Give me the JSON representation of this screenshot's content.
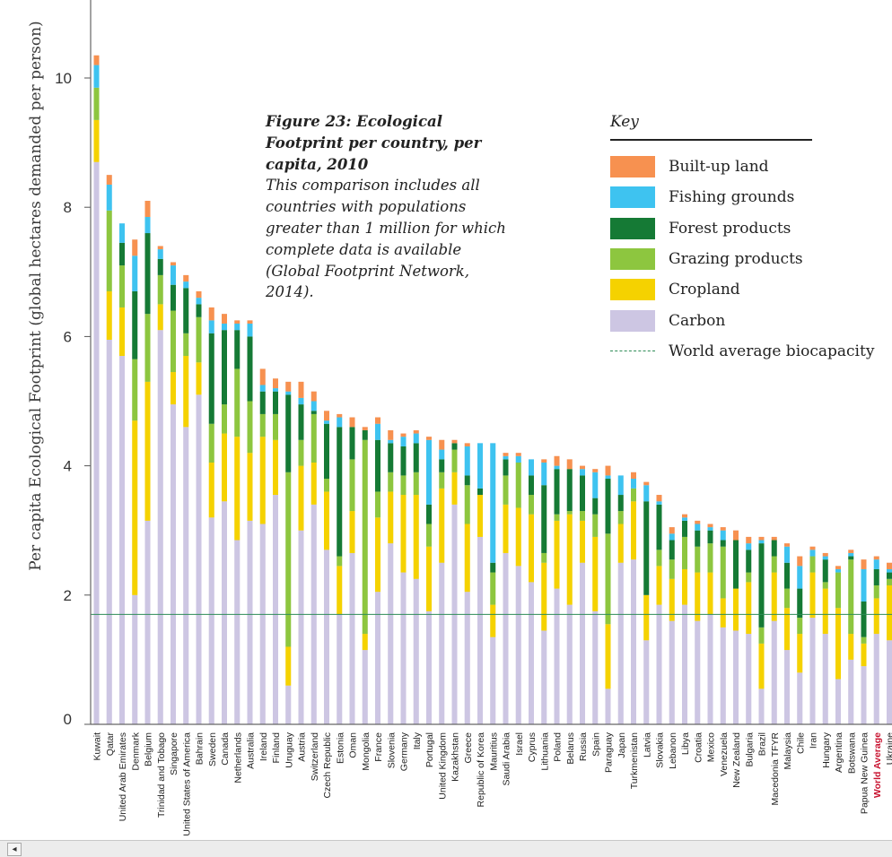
{
  "chart_data": {
    "type": "bar",
    "stacked": true,
    "title": "Figure 23: Ecological Footprint per country, per capita, 2010",
    "subtitle": "This comparison includes all countries with populations greater than 1 million for which complete data is available (Global Footprint Network, 2014).",
    "ylabel": "Per capita Ecological Footprint (global hectares demanded per person)",
    "ylim": [
      0,
      11.2
    ],
    "yticks": [
      0,
      2,
      4,
      6,
      8,
      10
    ],
    "legend_title": "Key",
    "legend_position": "top-right",
    "reference_line": {
      "label": "World average biocapacity",
      "value": 1.7,
      "color": "#2e8b57"
    },
    "highlight_category": "World Average",
    "highlight_color": "#c8102e",
    "series": [
      {
        "name": "Carbon",
        "color": "#cdc6e3"
      },
      {
        "name": "Cropland",
        "color": "#f5d200"
      },
      {
        "name": "Grazing products",
        "color": "#8dc63f"
      },
      {
        "name": "Forest products",
        "color": "#157a35"
      },
      {
        "name": "Fishing grounds",
        "color": "#3ec3f0"
      },
      {
        "name": "Built-up land",
        "color": "#f79150"
      }
    ],
    "legend_order": [
      "Built-up land",
      "Fishing grounds",
      "Forest products",
      "Grazing products",
      "Cropland",
      "Carbon"
    ],
    "categories": [
      "Kuwait",
      "Qatar",
      "United Arab Emirates",
      "Denmark",
      "Belgium",
      "Trinidad and Tobago",
      "Singapore",
      "United States of America",
      "Bahrain",
      "Sweden",
      "Canada",
      "Netherlands",
      "Australia",
      "Ireland",
      "Finland",
      "Uruguay",
      "Austria",
      "Switzerland",
      "Czech Republic",
      "Estonia",
      "Oman",
      "Mongolia",
      "France",
      "Slovenia",
      "Germany",
      "Italy",
      "Portugal",
      "United Kingdom",
      "Kazakhstan",
      "Greece",
      "Republic of Korea",
      "Mauritius",
      "Saudi Arabia",
      "Israel",
      "Cyprus",
      "Lithuania",
      "Poland",
      "Belarus",
      "Russia",
      "Spain",
      "Paraguay",
      "Japan",
      "Turkmenistan",
      "Latvia",
      "Slovakia",
      "Lebanon",
      "Libya",
      "Croatia",
      "Mexico",
      "Venezuela",
      "New Zealand",
      "Bulgaria",
      "Brazil",
      "Macedonia TFYR",
      "Malaysia",
      "Chile",
      "Iran",
      "Hungary",
      "Argentina",
      "Botswana",
      "Papua New Guinea",
      "World Average",
      "Ukraine"
    ],
    "values": [
      [
        8.7,
        0.65,
        0.5,
        0.0,
        0.35,
        0.15
      ],
      [
        5.95,
        0.75,
        1.25,
        0.0,
        0.4,
        0.15
      ],
      [
        5.7,
        0.75,
        0.65,
        0.35,
        0.3,
        0.0
      ],
      [
        2.0,
        2.7,
        0.95,
        1.05,
        0.55,
        0.25
      ],
      [
        3.15,
        2.15,
        1.05,
        1.25,
        0.25,
        0.25
      ],
      [
        6.1,
        0.4,
        0.45,
        0.25,
        0.15,
        0.05
      ],
      [
        4.95,
        0.5,
        0.95,
        0.4,
        0.3,
        0.05
      ],
      [
        4.6,
        1.1,
        0.35,
        0.7,
        0.1,
        0.1
      ],
      [
        5.1,
        0.5,
        0.7,
        0.2,
        0.1,
        0.1
      ],
      [
        3.2,
        0.85,
        0.6,
        1.4,
        0.2,
        0.2
      ],
      [
        3.45,
        1.05,
        0.45,
        1.15,
        0.1,
        0.15
      ],
      [
        2.85,
        1.6,
        1.05,
        0.6,
        0.1,
        0.05
      ],
      [
        3.15,
        1.05,
        0.8,
        1.0,
        0.2,
        0.05
      ],
      [
        3.1,
        1.35,
        0.35,
        0.35,
        0.1,
        0.25
      ],
      [
        3.55,
        0.85,
        0.4,
        0.35,
        0.05,
        0.15
      ],
      [
        0.6,
        0.6,
        2.7,
        1.2,
        0.05,
        0.15
      ],
      [
        3.0,
        1.0,
        0.4,
        0.55,
        0.1,
        0.25
      ],
      [
        3.4,
        0.65,
        0.75,
        0.05,
        0.15,
        0.15
      ],
      [
        2.7,
        0.9,
        0.2,
        0.85,
        0.05,
        0.15
      ],
      [
        1.7,
        0.75,
        0.15,
        2.0,
        0.15,
        0.05
      ],
      [
        2.65,
        0.65,
        0.8,
        0.5,
        0.0,
        0.15
      ],
      [
        1.15,
        0.25,
        3.0,
        0.15,
        0.0,
        0.05
      ],
      [
        2.05,
        1.15,
        0.4,
        0.8,
        0.25,
        0.1
      ],
      [
        2.8,
        0.8,
        0.3,
        0.45,
        0.05,
        0.15
      ],
      [
        2.35,
        1.2,
        0.3,
        0.45,
        0.15,
        0.05
      ],
      [
        2.25,
        1.3,
        0.35,
        0.45,
        0.15,
        0.05
      ],
      [
        1.75,
        1.0,
        0.35,
        0.3,
        1.0,
        0.05
      ],
      [
        2.5,
        1.15,
        0.25,
        0.2,
        0.15,
        0.15
      ],
      [
        3.4,
        0.5,
        0.35,
        0.1,
        0.0,
        0.05
      ],
      [
        2.05,
        1.05,
        0.6,
        0.15,
        0.45,
        0.05
      ],
      [
        2.9,
        0.65,
        0.0,
        0.1,
        0.7,
        0.0
      ],
      [
        1.35,
        0.5,
        0.5,
        0.15,
        1.85,
        0.0
      ],
      [
        2.65,
        0.75,
        0.45,
        0.25,
        0.05,
        0.05
      ],
      [
        2.45,
        0.9,
        0.7,
        0.0,
        0.1,
        0.05
      ],
      [
        2.2,
        1.05,
        0.3,
        0.3,
        0.25,
        0.0
      ],
      [
        1.45,
        1.05,
        0.15,
        1.05,
        0.35,
        0.05
      ],
      [
        2.1,
        1.05,
        0.1,
        0.7,
        0.05,
        0.15
      ],
      [
        1.85,
        1.4,
        0.05,
        0.65,
        0.0,
        0.15
      ],
      [
        2.5,
        0.65,
        0.15,
        0.55,
        0.1,
        0.05
      ],
      [
        1.75,
        1.15,
        0.35,
        0.25,
        0.4,
        0.05
      ],
      [
        0.55,
        1.0,
        1.4,
        0.85,
        0.05,
        0.15
      ],
      [
        2.5,
        0.6,
        0.2,
        0.25,
        0.3,
        0.0
      ],
      [
        2.55,
        0.9,
        0.2,
        0.0,
        0.15,
        0.1
      ],
      [
        1.3,
        0.7,
        0.0,
        1.45,
        0.25,
        0.05
      ],
      [
        1.85,
        0.6,
        0.25,
        0.7,
        0.05,
        0.1
      ],
      [
        1.6,
        0.65,
        0.3,
        0.3,
        0.1,
        0.1
      ],
      [
        1.85,
        0.55,
        0.5,
        0.25,
        0.05,
        0.05
      ],
      [
        1.6,
        0.75,
        0.4,
        0.25,
        0.1,
        0.05
      ],
      [
        1.7,
        0.65,
        0.45,
        0.2,
        0.05,
        0.05
      ],
      [
        1.5,
        0.45,
        0.8,
        0.1,
        0.15,
        0.05
      ],
      [
        1.45,
        0.65,
        0.0,
        0.75,
        0.0,
        0.15
      ],
      [
        1.4,
        0.8,
        0.15,
        0.35,
        0.1,
        0.1
      ],
      [
        0.55,
        0.7,
        0.25,
        1.3,
        0.05,
        0.05
      ],
      [
        1.6,
        0.75,
        0.25,
        0.25,
        0.0,
        0.05
      ],
      [
        1.15,
        0.65,
        0.3,
        0.4,
        0.25,
        0.05
      ],
      [
        0.8,
        0.6,
        0.25,
        0.45,
        0.35,
        0.15
      ],
      [
        1.65,
        0.7,
        0.25,
        0.0,
        0.1,
        0.05
      ],
      [
        1.4,
        0.7,
        0.1,
        0.35,
        0.05,
        0.05
      ],
      [
        0.7,
        1.1,
        0.55,
        0.0,
        0.05,
        0.05
      ],
      [
        1.0,
        0.4,
        1.15,
        0.05,
        0.05,
        0.05
      ],
      [
        0.9,
        0.35,
        0.1,
        0.55,
        0.5,
        0.15
      ],
      [
        1.4,
        0.55,
        0.2,
        0.25,
        0.15,
        0.05
      ],
      [
        1.3,
        0.85,
        0.1,
        0.1,
        0.05,
        0.1
      ]
    ]
  },
  "ui": {
    "scroll_left_arrow": "◂"
  }
}
